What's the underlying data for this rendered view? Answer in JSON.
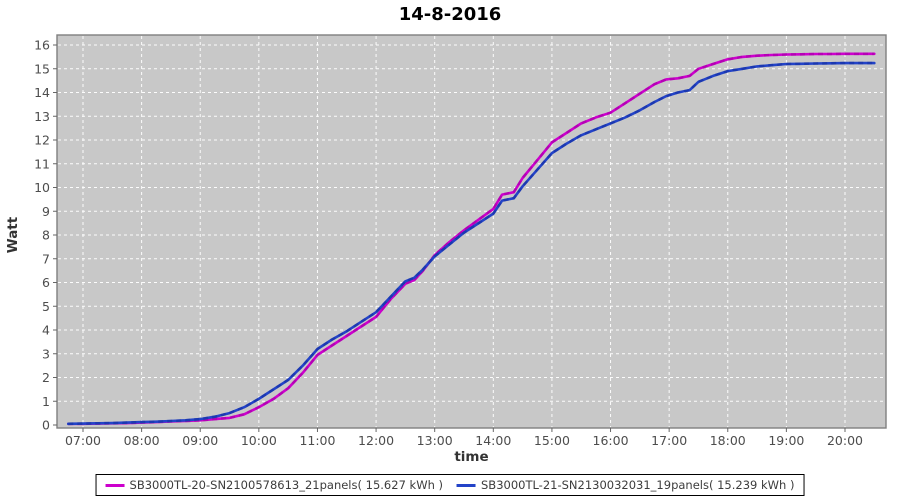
{
  "title": "14-8-2016",
  "legend": {
    "entries": [
      {
        "label": "SB3000TL-20-SN2100578613_21panels( 15.627 kWh )"
      },
      {
        "label": "SB3000TL-21-SN2130032031_19panels( 15.239 kWh )"
      }
    ]
  },
  "colors": {
    "series_magenta": "#cc00cc",
    "series_magenta_dark": "#a300a3",
    "series_blue": "#2343c8",
    "series_blue_dark": "#152f9e",
    "plot_background": "#c8c8c8",
    "plot_border": "#7f7f7f",
    "gridline": "#ffffff",
    "tick_text": "#4d4d4d",
    "axis_label_text": "#333333"
  },
  "chart_data": {
    "type": "line",
    "title": "14-8-2016",
    "xlabel": "time",
    "ylabel": "Watt",
    "grid": "on, white dashed on gray panel",
    "legend_position": "bottom-center, boxed",
    "ylim": [
      0,
      16
    ],
    "y_ticks": [
      0,
      1,
      2,
      3,
      4,
      5,
      6,
      7,
      8,
      9,
      10,
      11,
      12,
      13,
      14,
      15,
      16
    ],
    "x_ticks": [
      "07:00",
      "08:00",
      "09:00",
      "10:00",
      "11:00",
      "12:00",
      "13:00",
      "14:00",
      "15:00",
      "16:00",
      "17:00",
      "18:00",
      "19:00",
      "20:00"
    ],
    "x_hours": [
      6.75,
      7.0,
      7.25,
      7.5,
      7.75,
      8.0,
      8.25,
      8.5,
      8.75,
      9.0,
      9.25,
      9.5,
      9.75,
      10.0,
      10.25,
      10.5,
      10.75,
      11.0,
      11.25,
      11.5,
      11.75,
      12.0,
      12.25,
      12.5,
      12.65,
      12.8,
      13.0,
      13.25,
      13.5,
      13.75,
      14.0,
      14.15,
      14.35,
      14.5,
      14.75,
      15.0,
      15.25,
      15.5,
      15.75,
      16.0,
      16.25,
      16.5,
      16.75,
      16.95,
      17.15,
      17.35,
      17.5,
      17.75,
      18.0,
      18.25,
      18.5,
      18.75,
      19.0,
      19.25,
      19.5,
      19.75,
      20.0,
      20.25,
      20.5
    ],
    "series": [
      {
        "name": "SB3000TL-20-SN2100578613_21panels( 15.627 kWh )",
        "color": "#cc00cc",
        "total_kwh": "15.627",
        "values": [
          0.05,
          0.05,
          0.06,
          0.07,
          0.08,
          0.1,
          0.12,
          0.15,
          0.17,
          0.2,
          0.25,
          0.3,
          0.45,
          0.75,
          1.1,
          1.55,
          2.2,
          2.95,
          3.35,
          3.75,
          4.15,
          4.55,
          5.3,
          5.95,
          6.1,
          6.5,
          7.15,
          7.7,
          8.2,
          8.65,
          9.1,
          9.7,
          9.8,
          10.4,
          11.15,
          11.9,
          12.3,
          12.7,
          12.95,
          13.15,
          13.55,
          13.95,
          14.35,
          14.55,
          14.6,
          14.7,
          15.0,
          15.2,
          15.4,
          15.5,
          15.55,
          15.58,
          15.6,
          15.61,
          15.62,
          15.62,
          15.63,
          15.63,
          15.63
        ]
      },
      {
        "name": "SB3000TL-21-SN2130032031_19panels( 15.239 kWh )",
        "color": "#2343c8",
        "total_kwh": "15.239",
        "values": [
          0.05,
          0.06,
          0.07,
          0.08,
          0.1,
          0.12,
          0.14,
          0.17,
          0.2,
          0.25,
          0.35,
          0.5,
          0.75,
          1.1,
          1.5,
          1.9,
          2.5,
          3.2,
          3.6,
          3.95,
          4.35,
          4.75,
          5.4,
          6.05,
          6.2,
          6.55,
          7.1,
          7.6,
          8.1,
          8.5,
          8.9,
          9.45,
          9.55,
          10.05,
          10.75,
          11.45,
          11.85,
          12.2,
          12.45,
          12.7,
          12.95,
          13.25,
          13.6,
          13.85,
          14.0,
          14.1,
          14.45,
          14.7,
          14.9,
          15.0,
          15.1,
          15.15,
          15.2,
          15.21,
          15.22,
          15.23,
          15.24,
          15.24,
          15.24
        ]
      }
    ]
  }
}
